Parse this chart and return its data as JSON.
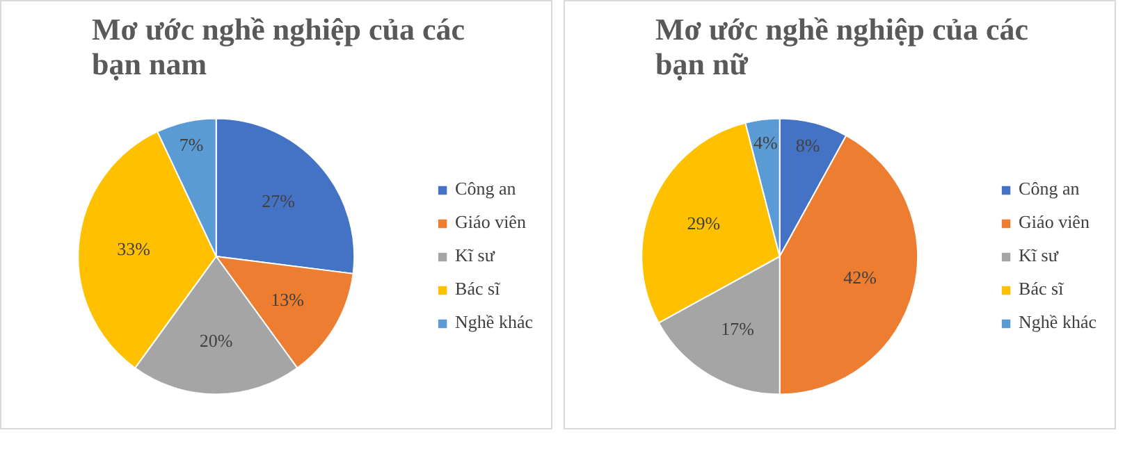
{
  "chart_data": [
    {
      "type": "pie",
      "title": "Mơ ước nghề nghiệp của các bạn nam",
      "categories": [
        "Công an",
        "Giáo viên",
        "Kĩ sư",
        "Bác sĩ",
        "Nghề khác"
      ],
      "values": [
        27,
        13,
        20,
        33,
        7
      ],
      "value_labels": [
        "27%",
        "13%",
        "20%",
        "33%",
        "7%"
      ],
      "colors": [
        "#4472c4",
        "#ed7d31",
        "#a5a5a5",
        "#ffc000",
        "#5b9bd5"
      ],
      "legend": "right"
    },
    {
      "type": "pie",
      "title": "Mơ ước nghề nghiệp của các bạn nữ",
      "categories": [
        "Công an",
        "Giáo viên",
        "Kĩ sư",
        "Bác sĩ",
        "Nghề khác"
      ],
      "values": [
        8,
        42,
        17,
        29,
        4
      ],
      "value_labels": [
        "8%",
        "42%",
        "17%",
        "29%",
        "4%"
      ],
      "colors": [
        "#4472c4",
        "#ed7d31",
        "#a5a5a5",
        "#ffc000",
        "#5b9bd5"
      ],
      "legend": "right"
    }
  ]
}
